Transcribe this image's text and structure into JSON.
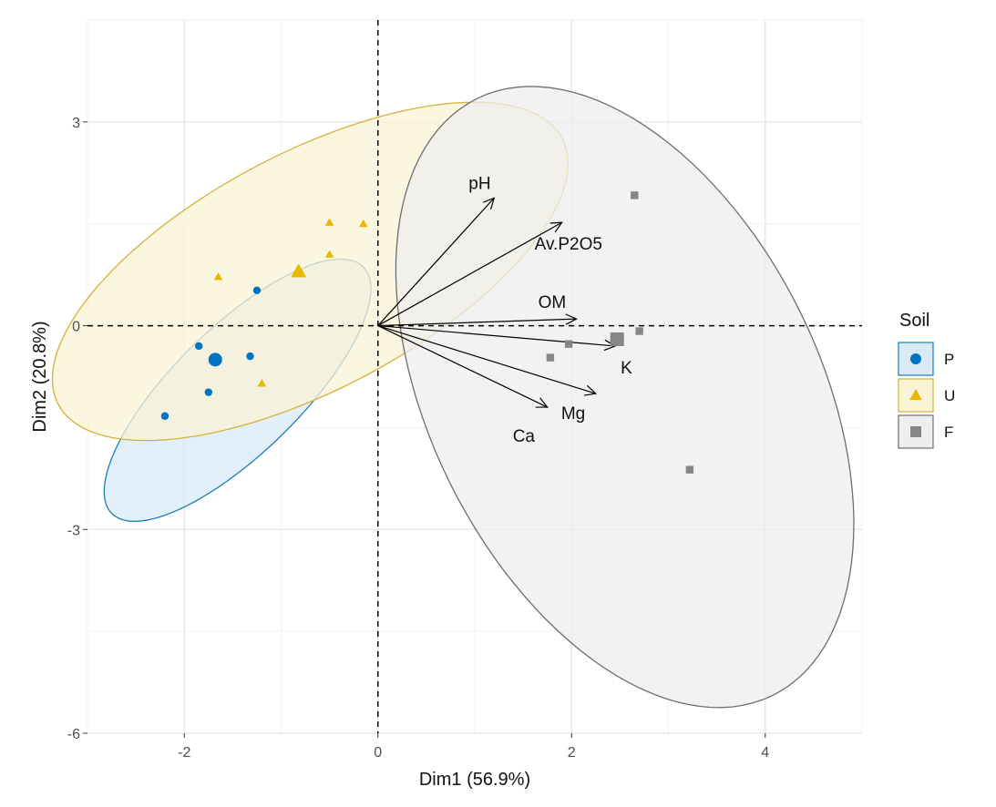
{
  "chart_data": {
    "type": "scatter",
    "title": "",
    "xlabel": "Dim1 (56.9%)",
    "ylabel": "Dim2 (20.8%)",
    "xlim": [
      -3.0,
      5.0
    ],
    "ylim": [
      -6.0,
      4.5
    ],
    "x_ticks": [
      -2,
      0,
      2,
      4
    ],
    "y_ticks": [
      -6,
      -3,
      0,
      3
    ],
    "grid": true,
    "reference_lines": {
      "x": 0,
      "y": 0,
      "style": "dashed"
    },
    "legend": {
      "title": "Soil",
      "position": "right"
    },
    "series": [
      {
        "name": "P",
        "color": "#0073c2",
        "shape": "circle",
        "points": [
          [
            -1.25,
            0.52
          ],
          [
            -1.85,
            -0.3
          ],
          [
            -1.75,
            -0.98
          ],
          [
            -2.2,
            -1.33
          ],
          [
            -1.32,
            -0.45
          ]
        ],
        "centroid": [
          -1.68,
          -0.5
        ],
        "ellipse": {
          "cx": -1.45,
          "cy": -0.95,
          "rx": 2.25,
          "ry": 0.75,
          "angle_deg": 57,
          "fill": "#d9e9f5",
          "stroke": "#1b7fb3"
        }
      },
      {
        "name": "U",
        "color": "#e8b800",
        "shape": "triangle",
        "points": [
          [
            -0.5,
            1.52
          ],
          [
            -0.15,
            1.5
          ],
          [
            -0.5,
            1.05
          ],
          [
            -1.65,
            0.72
          ],
          [
            -1.2,
            -0.85
          ]
        ],
        "centroid": [
          -0.82,
          0.8
        ],
        "ellipse": {
          "cx": -0.7,
          "cy": 0.8,
          "rx": 3.3,
          "ry": 1.55,
          "angle_deg": 42,
          "fill": "#faf3d6",
          "stroke": "#d4b23a"
        }
      },
      {
        "name": "F",
        "color": "#868686",
        "shape": "square",
        "points": [
          [
            2.65,
            1.92
          ],
          [
            2.7,
            -0.08
          ],
          [
            1.97,
            -0.27
          ],
          [
            1.78,
            -0.47
          ],
          [
            3.22,
            -2.12
          ],
          [
            2.5,
            -0.2
          ]
        ],
        "centroid": [
          2.47,
          -0.2
        ],
        "ellipse": {
          "cx": 2.55,
          "cy": -1.05,
          "rx": 2.1,
          "ry": 4.7,
          "angle_deg": 15,
          "fill": "#eeeeee",
          "stroke": "#6e6e6e"
        }
      }
    ],
    "variables": [
      {
        "name": "pH",
        "x": 1.2,
        "y": 1.88
      },
      {
        "name": "Av.P2O5",
        "x": 1.9,
        "y": 1.52
      },
      {
        "name": "OM",
        "x": 2.05,
        "y": 0.1
      },
      {
        "name": "K",
        "x": 2.45,
        "y": -0.3
      },
      {
        "name": "Mg",
        "x": 2.25,
        "y": -1.0
      },
      {
        "name": "Ca",
        "x": 1.75,
        "y": -1.2
      }
    ]
  }
}
